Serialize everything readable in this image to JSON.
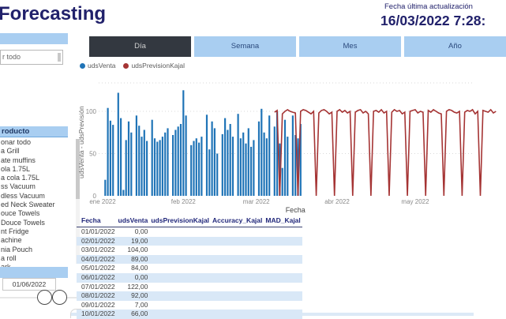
{
  "header": {
    "title": "Forecasting",
    "last_update_label": "Fecha última actualización",
    "last_update_value": "16/03/2022 7:28:"
  },
  "tabs": [
    {
      "label": "Día",
      "active": true
    },
    {
      "label": "Semana",
      "active": false
    },
    {
      "label": "Mes",
      "active": false
    },
    {
      "label": "Año",
      "active": false
    }
  ],
  "sidebar": {
    "top_slicer": {
      "visible_text": "r todo"
    },
    "product_slicer": {
      "header": "roducto",
      "items": [
        "onar todo",
        "a Grill",
        "ate muffins",
        "ola 1.75L",
        "a cola 1.75L",
        "ss Vacuum",
        "dless Vacuum",
        "ed Neck Sweater",
        "ouce Towels",
        "Douce Towels",
        "nt Fridge",
        "achine",
        "nia Pouch",
        "a roll",
        "ark"
      ]
    },
    "date_slicer": {
      "end_date": "01/06/2022"
    }
  },
  "chart_data": {
    "type": "bar+line",
    "title": "",
    "xlabel": "Fecha",
    "ylabel": "udsVenta - udsPrevisión",
    "x_tick_labels": [
      "ene 2022",
      "feb 2022",
      "mar 2022",
      "abr 2022",
      "may 2022"
    ],
    "x_tick_days": [
      1,
      32,
      60,
      91,
      121
    ],
    "y_ticks": [
      0,
      50,
      100
    ],
    "ylim": [
      0,
      130
    ],
    "grid": true,
    "legend_position": "top-left",
    "series": [
      {
        "name": "udsVenta",
        "type": "bar",
        "color": "#2074B7",
        "start_day": 1,
        "values": [
          0,
          19,
          104,
          89,
          84,
          0,
          122,
          92,
          7,
          66,
          88,
          75,
          0,
          95,
          83,
          70,
          78,
          65,
          0,
          90,
          68,
          64,
          66,
          70,
          75,
          80,
          0,
          72,
          78,
          82,
          85,
          125,
          95,
          0,
          60,
          65,
          68,
          63,
          70,
          0,
          96,
          55,
          88,
          80,
          50,
          0,
          73,
          92,
          78,
          85,
          70,
          0,
          97,
          68,
          75,
          62,
          80,
          58,
          66,
          0,
          88,
          103,
          75,
          68,
          95,
          0,
          82,
          100,
          62,
          33,
          90,
          70,
          0,
          95,
          72,
          68,
          85
        ]
      },
      {
        "name": "udsPrevisionKajal",
        "type": "line",
        "color": "#A53434",
        "start_day": 67,
        "values": [
          99,
          101,
          0,
          97,
          100,
          102,
          100,
          99,
          98,
          0,
          100,
          102,
          101,
          99,
          97,
          100,
          0,
          98,
          101,
          102,
          100,
          97,
          99,
          0,
          100,
          102,
          99,
          101,
          98,
          100,
          0,
          99,
          101,
          102,
          98,
          100,
          97,
          0,
          100,
          101,
          99,
          102,
          98,
          100,
          0,
          99,
          102,
          100,
          101,
          97,
          99,
          0,
          100,
          101,
          102,
          98,
          100,
          99,
          0,
          101,
          99,
          102,
          100,
          98,
          97,
          0,
          100,
          102,
          101,
          99,
          98,
          100,
          0,
          99,
          101,
          100,
          102,
          97,
          100,
          0,
          101,
          100,
          99,
          102,
          98,
          100
        ]
      }
    ]
  },
  "table": {
    "columns": [
      "Fecha",
      "udsVenta",
      "udsPrevisionKajal",
      "Accuracy_Kajal",
      "MAD_Kajal"
    ],
    "rows": [
      [
        "01/01/2022",
        "0,00",
        "",
        "",
        ""
      ],
      [
        "02/01/2022",
        "19,00",
        "",
        "",
        ""
      ],
      [
        "03/01/2022",
        "104,00",
        "",
        "",
        ""
      ],
      [
        "04/01/2022",
        "89,00",
        "",
        "",
        ""
      ],
      [
        "05/01/2022",
        "84,00",
        "",
        "",
        ""
      ],
      [
        "06/01/2022",
        "0,00",
        "",
        "",
        ""
      ],
      [
        "07/01/2022",
        "122,00",
        "",
        "",
        ""
      ],
      [
        "08/01/2022",
        "92,00",
        "",
        "",
        ""
      ],
      [
        "09/01/2022",
        "7,00",
        "",
        "",
        ""
      ],
      [
        "10/01/2022",
        "66,00",
        "",
        "",
        ""
      ]
    ]
  },
  "colors": {
    "navy": "#21216B",
    "light_blue": "#A9CEF1",
    "bar_blue": "#2074B7",
    "line_red": "#A53434",
    "row_alt": "#D9E8F7",
    "tab_dark": "#333840"
  }
}
